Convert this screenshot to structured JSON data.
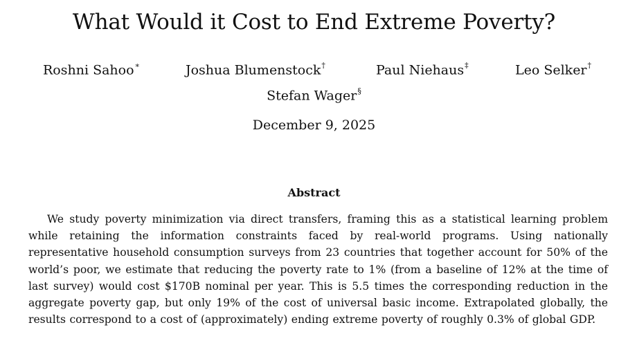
{
  "paper": {
    "title": "What Would it Cost to End Extreme Poverty?",
    "authors": [
      {
        "name": "Roshni Sahoo",
        "mark": "∗"
      },
      {
        "name": "Joshua Blumenstock",
        "mark": "†"
      },
      {
        "name": "Paul Niehaus",
        "mark": "‡"
      },
      {
        "name": "Leo Selker",
        "mark": "†"
      },
      {
        "name": "Stefan Wager",
        "mark": "§"
      }
    ],
    "date": "December 9, 2025",
    "abstract_heading": "Abstract",
    "abstract_text": "We study poverty minimization via direct transfers, framing this as a statistical learning problem while retaining the information constraints faced by real-world programs. Using nationally representative household consumption surveys from 23 countries that together account for 50% of the world’s poor, we estimate that reducing the poverty rate to 1% (from a baseline of 12% at the time of last survey) would cost $170B nominal per year. This is 5.5 times the corresponding reduction in the aggregate poverty gap, but only 19% of the cost of universal basic income. Extrapolated globally, the results correspond to a cost of (approximately) ending extreme poverty of roughly 0.3% of global GDP."
  }
}
